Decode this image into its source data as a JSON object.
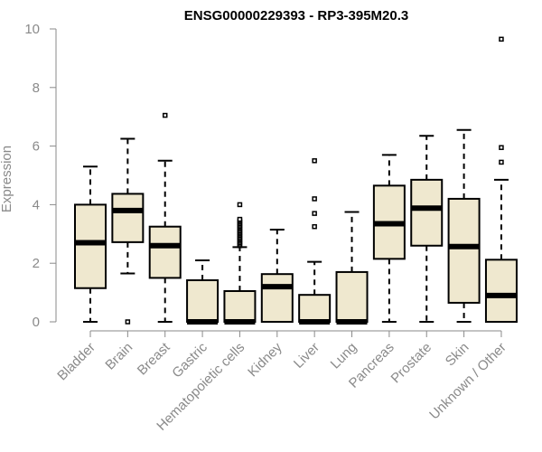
{
  "chart_data": {
    "type": "box",
    "title": "ENSG00000229393 - RP3-395M20.3",
    "ylabel": "Expression",
    "xlabel": "",
    "ylim": [
      0,
      10
    ],
    "yticks": [
      0,
      2,
      4,
      6,
      8,
      10
    ],
    "grid": false,
    "box_color": "#efe8cf",
    "categories": [
      "Bladder",
      "Brain",
      "Breast",
      "Gastric",
      "Hematopoietic cells",
      "Kidney",
      "Liver",
      "Lung",
      "Pancreas",
      "Prostate",
      "Skin",
      "Unknown / Other"
    ],
    "boxes": [
      {
        "min": 0,
        "q1": 1.15,
        "median": 2.7,
        "q3": 4.0,
        "max": 5.3,
        "outliers": []
      },
      {
        "min": 1.65,
        "q1": 2.72,
        "median": 3.8,
        "q3": 4.37,
        "max": 6.25,
        "outliers": [
          0.0
        ]
      },
      {
        "min": 0,
        "q1": 1.5,
        "median": 2.6,
        "q3": 3.25,
        "max": 5.5,
        "outliers": [
          7.05
        ]
      },
      {
        "min": 0,
        "q1": 0,
        "median": 0,
        "q3": 1.42,
        "max": 2.1,
        "outliers": []
      },
      {
        "min": 0,
        "q1": 0,
        "median": 0,
        "q3": 1.05,
        "max": 2.55,
        "outliers": [
          2.6,
          2.65,
          2.7,
          2.75,
          2.8,
          2.85,
          2.9,
          2.95,
          3.0,
          3.05,
          3.1,
          3.15,
          3.2,
          3.25,
          3.3,
          3.35,
          3.4,
          3.45,
          3.5,
          4.0
        ]
      },
      {
        "min": 0,
        "q1": 0,
        "median": 1.2,
        "q3": 1.63,
        "max": 3.15,
        "outliers": []
      },
      {
        "min": 0,
        "q1": 0,
        "median": 0,
        "q3": 0.92,
        "max": 2.05,
        "outliers": [
          3.25,
          3.7,
          4.2,
          5.5
        ]
      },
      {
        "min": 0,
        "q1": 0,
        "median": 0,
        "q3": 1.7,
        "max": 3.75,
        "outliers": []
      },
      {
        "min": 0,
        "q1": 2.15,
        "median": 3.35,
        "q3": 4.65,
        "max": 5.7,
        "outliers": []
      },
      {
        "min": 0,
        "q1": 2.6,
        "median": 3.88,
        "q3": 4.85,
        "max": 6.35,
        "outliers": []
      },
      {
        "min": 0,
        "q1": 0.65,
        "median": 2.57,
        "q3": 4.2,
        "max": 6.55,
        "outliers": []
      },
      {
        "min": 0,
        "q1": 0,
        "median": 0.9,
        "q3": 2.12,
        "max": 4.85,
        "outliers": [
          5.45,
          5.95,
          9.65
        ]
      }
    ]
  }
}
